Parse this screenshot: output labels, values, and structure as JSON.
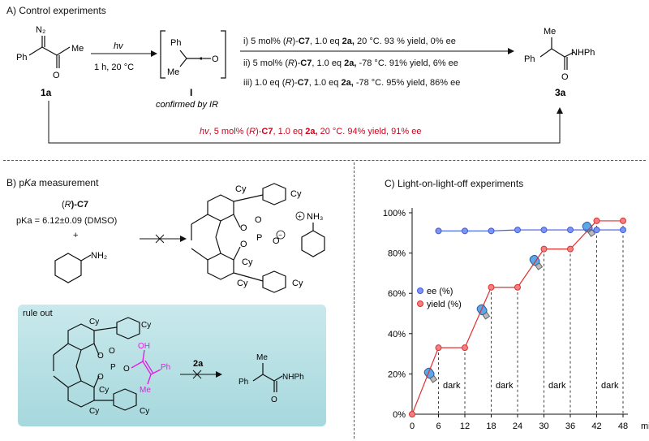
{
  "panel_a": {
    "title": "A) Control experiments",
    "reagent_hv": "hv",
    "conditions_time": "1 h, 20 °C",
    "compound_1a": "1a",
    "compound_I": "I",
    "confirmed": "confirmed by IR",
    "compound_3a": "3a",
    "cond_i_pre": "i) 5 mol% (",
    "cond_i_R": "R",
    "cond_i_mid": ")-",
    "cond_i_cat": "C7",
    "cond_i_eq": ", 1.0 eq ",
    "cond_i_sub": "2a,",
    "cond_i_rest": " 20 °C.  93 % yield, 0% ee",
    "cond_ii_pre": "ii) 5 mol% (",
    "cond_ii_R": "R",
    "cond_ii_mid": ")-",
    "cond_ii_cat": "C7",
    "cond_ii_eq": ", 1.0 eq ",
    "cond_ii_sub": "2a,",
    "cond_ii_rest": " -78 °C.  91% yield, 6% ee",
    "cond_iii_pre": "iii) 1.0 eq (",
    "cond_iii_R": "R",
    "cond_iii_mid": ")-",
    "cond_iii_cat": "C7",
    "cond_iii_eq": ", 1.0 eq ",
    "cond_iii_sub": "2a,",
    "cond_iii_rest": " -78 °C.  95% yield, 86% ee",
    "red_hv": "hv",
    "red_pre": ", 5 mol% (",
    "red_R": "R",
    "red_mid": ")-",
    "red_cat": "C7",
    "red_eq": ", 1.0 eq ",
    "red_sub": "2a,",
    "red_rest": " 20 °C. 94% yield, 91% ee",
    "atoms": {
      "n2": "N₂",
      "ph": "Ph",
      "me": "Me",
      "o": "O",
      "nhph": "NHPh"
    }
  },
  "panel_b": {
    "title_pre": "B) p",
    "title_it": "Ka",
    "title_rest": " measurement",
    "cat_label_pre": "(",
    "cat_label_R": "R",
    "cat_label_rest": ")-C7",
    "pka_label": "pKa = 6.12±0.09 (DMSO)",
    "plus": "+",
    "nh2": "NH₂",
    "nh3": "NH₃",
    "rule_out": "rule out",
    "reagent_2a": "2a",
    "cy": "Cy",
    "p": "P",
    "o": "O",
    "oh": "OH",
    "ph": "Ph",
    "me": "Me",
    "nhph": "NHPh"
  },
  "chart_data": {
    "type": "line",
    "title": "C) Light-on-light-off experiments",
    "xlabel": "min",
    "ylabel": "",
    "x_ticks": [
      0,
      6,
      12,
      18,
      24,
      30,
      36,
      42,
      48
    ],
    "y_ticks": [
      "0%",
      "20%",
      "40%",
      "60%",
      "80%",
      "100%"
    ],
    "xlim": [
      0,
      48
    ],
    "ylim": [
      0,
      100
    ],
    "legend_position": "middle-right",
    "series": [
      {
        "name": "ee (%)",
        "color": "#3a5be0",
        "x": [
          6,
          12,
          18,
          24,
          30,
          36,
          42,
          48
        ],
        "y": [
          91,
          91,
          91,
          91.5,
          91.5,
          91.5,
          91.5,
          91.5
        ]
      },
      {
        "name": "yield (%)",
        "color": "#e03030",
        "x": [
          0,
          6,
          12,
          18,
          24,
          30,
          36,
          42,
          48
        ],
        "y": [
          0,
          33,
          33,
          63,
          63,
          82,
          82,
          96,
          96
        ]
      }
    ],
    "dark_labels": [
      "dark",
      "dark",
      "dark",
      "dark"
    ],
    "light_segments": [
      [
        0,
        6
      ],
      [
        12,
        18
      ],
      [
        24,
        30
      ],
      [
        36,
        42
      ]
    ]
  }
}
